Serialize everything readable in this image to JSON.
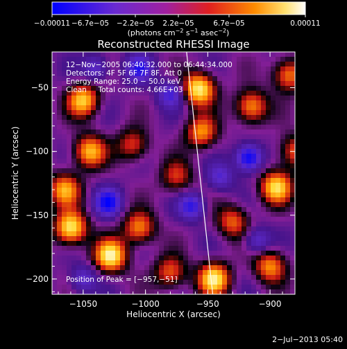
{
  "chart_data": {
    "type": "heatmap",
    "title": "Reconstructed RHESSI Image",
    "xlabel": "Heliocentric X (arcsec)",
    "ylabel": "Heliocentric Y (arcsec)",
    "xlim": [
      -1075,
      -880
    ],
    "ylim": [
      -212,
      -22
    ],
    "xticks": [
      -1050,
      -1000,
      -950,
      -900
    ],
    "yticks": [
      -50,
      -100,
      -150,
      -200
    ],
    "xtick_labels": [
      "−1050",
      "−1000",
      "−950",
      "−900"
    ],
    "ytick_labels": [
      "−50",
      "−100",
      "−150",
      "−200"
    ],
    "colorbar": {
      "tick_labels": [
        "−0.00011",
        "−6.7e−05",
        "−2.2e−05",
        "2.2e−05",
        "6.7e−05",
        "0.00011"
      ],
      "unit_line1": "(photons cm",
      "unit_sup1": "−2",
      "unit_line2": " s",
      "unit_sup2": "−1",
      "unit_line3": " asec",
      "unit_sup3": "−2",
      "unit_close": ")",
      "range": [
        -0.00011,
        0.00011
      ],
      "colors": [
        "#0000ff",
        "#7a2fd8",
        "#a020a0",
        "#e02020",
        "#ff8000",
        "#ffffff"
      ]
    },
    "info_lines": [
      "12−Nov−2005 06:40:32.000 to 06:44:34.000",
      "Detectors: 4F 5F 6F 7F 8F, Att 0",
      "Energy Range: 25.0 − 50.0 keV",
      "Clean     Total counts: 4.66E+03"
    ],
    "peak_label": "Position of Peak = [−957,−51]",
    "limb_line": [
      [
        -967,
        -22
      ],
      [
        -946,
        -212
      ]
    ],
    "hot_spots": [
      {
        "x": -1060,
        "y": -160,
        "v": 1.0
      },
      {
        "x": -1028,
        "y": -182,
        "v": 1.0
      },
      {
        "x": -1050,
        "y": -60,
        "v": 0.85
      },
      {
        "x": -1045,
        "y": -100,
        "v": 0.8
      },
      {
        "x": -1065,
        "y": -130,
        "v": 0.75
      },
      {
        "x": -957,
        "y": -51,
        "v": 1.0
      },
      {
        "x": -955,
        "y": -85,
        "v": 0.7
      },
      {
        "x": -945,
        "y": -200,
        "v": 0.95
      },
      {
        "x": -895,
        "y": -128,
        "v": 0.9
      },
      {
        "x": -915,
        "y": -65,
        "v": 0.75
      },
      {
        "x": -885,
        "y": -40,
        "v": 0.7
      },
      {
        "x": -1005,
        "y": -160,
        "v": 0.7
      },
      {
        "x": -980,
        "y": -195,
        "v": 0.6
      },
      {
        "x": -900,
        "y": -190,
        "v": 0.7
      },
      {
        "x": -930,
        "y": -155,
        "v": 0.6
      },
      {
        "x": -1010,
        "y": -95,
        "v": 0.55
      },
      {
        "x": -975,
        "y": -120,
        "v": 0.5
      },
      {
        "x": -880,
        "y": -100,
        "v": 0.6
      }
    ],
    "cold_spots": [
      {
        "x": -917,
        "y": -105,
        "v": -1.0
      },
      {
        "x": -1030,
        "y": -140,
        "v": -0.9
      },
      {
        "x": -1005,
        "y": -35,
        "v": -0.7
      },
      {
        "x": -980,
        "y": -55,
        "v": -0.6
      },
      {
        "x": -963,
        "y": -143,
        "v": -0.7
      },
      {
        "x": -1040,
        "y": -35,
        "v": -0.5
      },
      {
        "x": -940,
        "y": -120,
        "v": -0.5
      },
      {
        "x": -910,
        "y": -170,
        "v": -0.5
      },
      {
        "x": -1050,
        "y": -200,
        "v": -0.5
      }
    ]
  },
  "footer": {
    "timestamp": "2−Jul−2013 05:40"
  }
}
